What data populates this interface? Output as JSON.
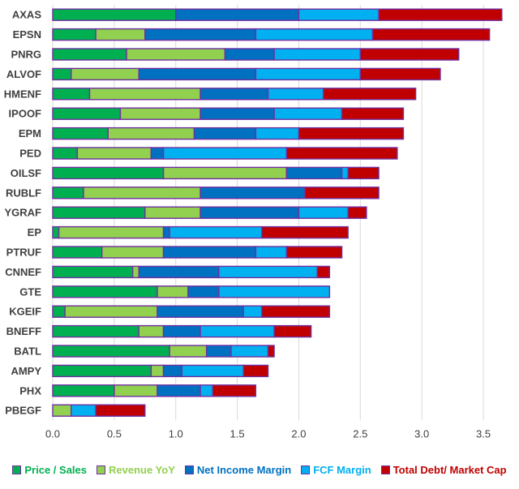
{
  "chart_data": {
    "type": "bar",
    "orientation": "horizontal",
    "stacked": true,
    "title": "",
    "xlabel": "",
    "ylabel": "",
    "xlim": [
      0,
      3.75
    ],
    "xticks": [
      "0.0",
      "0.5",
      "1.0",
      "1.5",
      "2.0",
      "2.5",
      "3.0",
      "3.5"
    ],
    "grid": true,
    "legend_position": "bottom",
    "bar_border_color": "#7030A0",
    "categories": [
      "AXAS",
      "EPSN",
      "PNRG",
      "ALVOF",
      "HMENF",
      "IPOOF",
      "EPM",
      "PED",
      "OILSF",
      "RUBLF",
      "YGRAF",
      "EP",
      "PTRUF",
      "CNNEF",
      "GTE",
      "KGEIF",
      "BNEFF",
      "BATL",
      "AMPY",
      "PHX",
      "PBEGF"
    ],
    "series": [
      {
        "name": "Price / Sales",
        "color": "#00B050",
        "text_color": "#00B050",
        "values": [
          1.0,
          0.35,
          0.6,
          0.15,
          0.3,
          0.55,
          0.45,
          0.2,
          0.9,
          0.25,
          0.75,
          0.05,
          0.4,
          0.65,
          0.85,
          0.1,
          0.7,
          0.95,
          0.8,
          0.5,
          0.0
        ]
      },
      {
        "name": "Revenue YoY",
        "color": "#92D050",
        "text_color": "#92D050",
        "values": [
          0.0,
          0.4,
          0.8,
          0.55,
          0.9,
          0.65,
          0.7,
          0.6,
          1.0,
          0.95,
          0.45,
          0.85,
          0.5,
          0.05,
          0.25,
          0.75,
          0.2,
          0.3,
          0.1,
          0.35,
          0.15
        ]
      },
      {
        "name": "Net Income Margin",
        "color": "#0070C0",
        "text_color": "#0070C0",
        "values": [
          1.0,
          0.9,
          0.4,
          0.95,
          0.55,
          0.6,
          0.5,
          0.1,
          0.45,
          0.85,
          0.8,
          0.05,
          0.75,
          0.65,
          0.25,
          0.7,
          0.3,
          0.2,
          0.15,
          0.35,
          0.0
        ]
      },
      {
        "name": "FCF Margin",
        "color": "#00B0F0",
        "text_color": "#00B0F0",
        "values": [
          0.65,
          0.95,
          0.7,
          0.85,
          0.45,
          0.55,
          0.35,
          1.0,
          0.05,
          0.0,
          0.4,
          0.75,
          0.25,
          0.8,
          0.9,
          0.15,
          0.6,
          0.3,
          0.5,
          0.1,
          0.2
        ]
      },
      {
        "name": "Total Debt/ Market Cap",
        "color": "#C00000",
        "text_color": "#C00000",
        "values": [
          1.0,
          0.95,
          0.8,
          0.65,
          0.75,
          0.5,
          0.85,
          0.9,
          0.25,
          0.6,
          0.15,
          0.7,
          0.45,
          0.1,
          0.0,
          0.55,
          0.3,
          0.05,
          0.2,
          0.35,
          0.4
        ]
      }
    ]
  }
}
